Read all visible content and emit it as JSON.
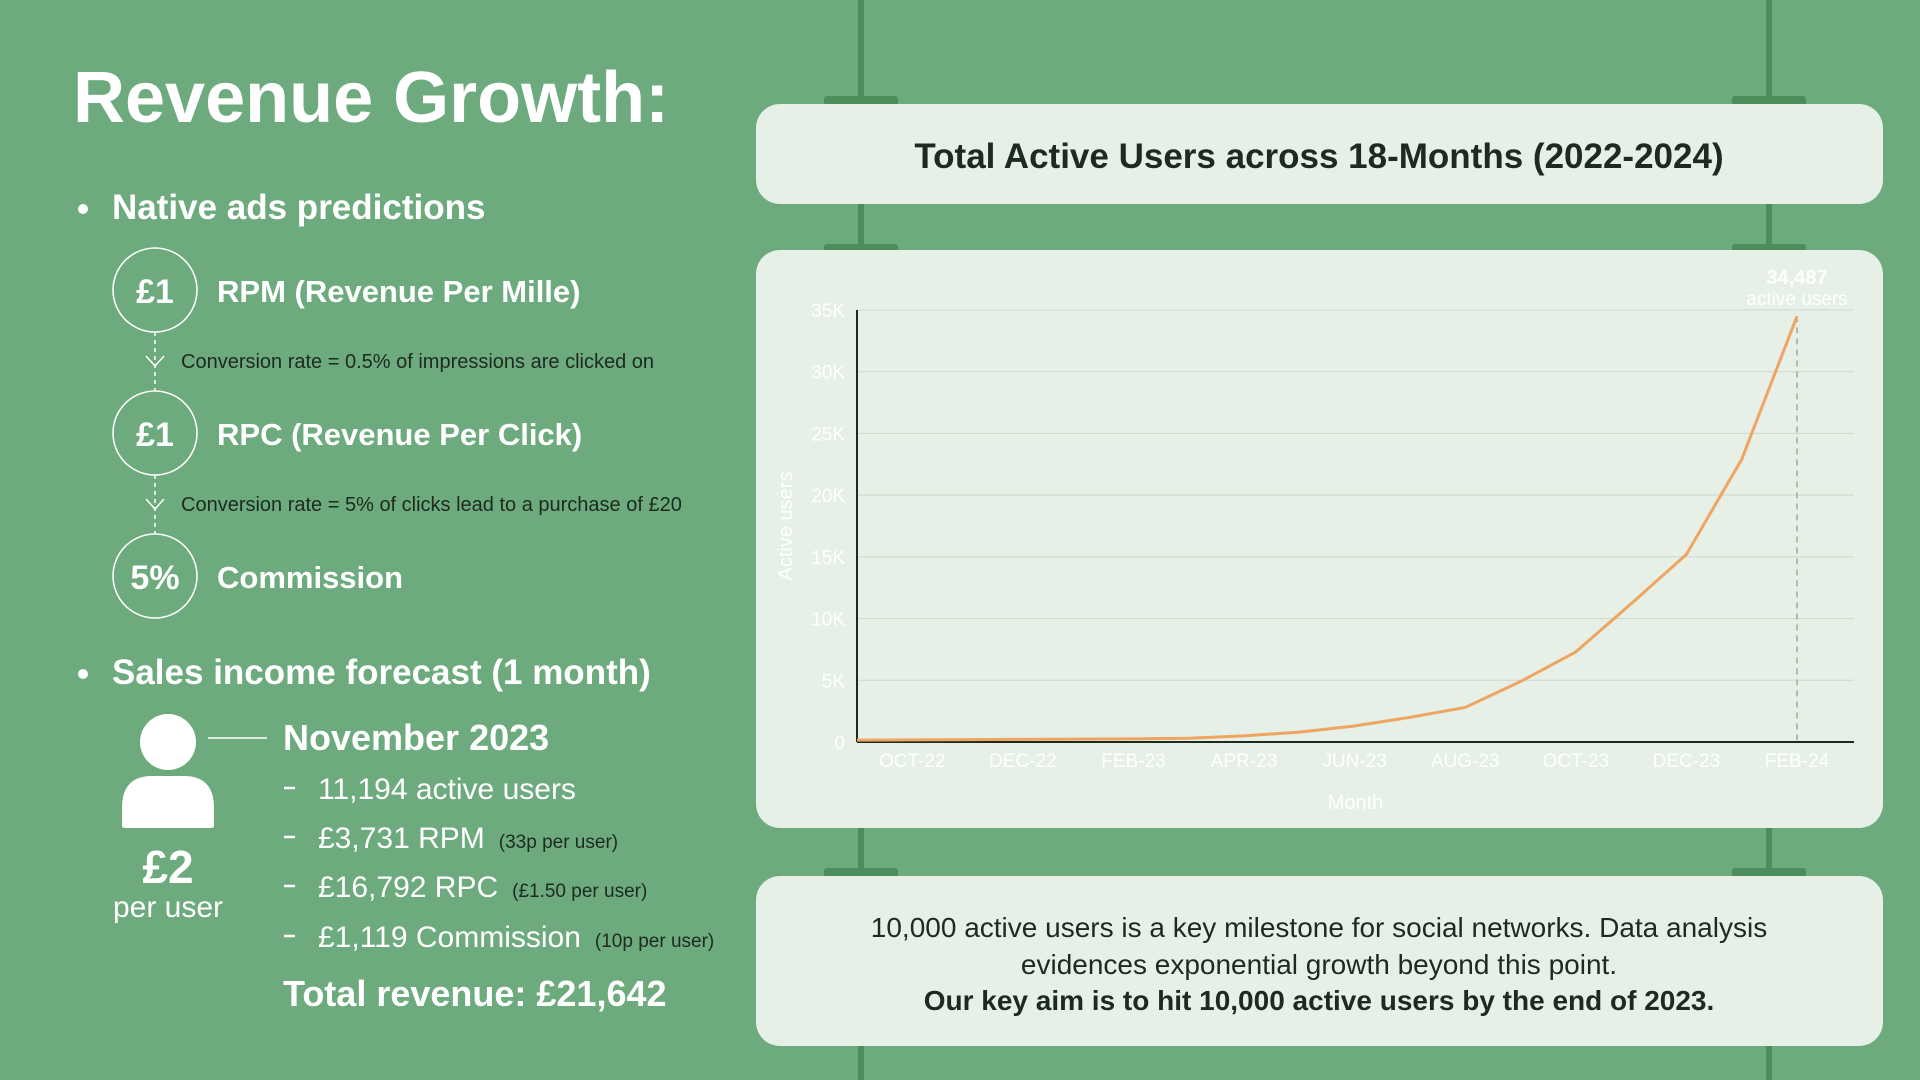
{
  "header": {
    "title": "Revenue Growth:"
  },
  "native_ads": {
    "heading": "Native ads predictions",
    "steps": [
      {
        "badge": "£1",
        "label": "RPM (Revenue Per Mille)"
      },
      {
        "badge": "£1",
        "label": "RPC (Revenue Per Click)"
      },
      {
        "badge": "5%",
        "label": "Commission"
      }
    ],
    "conversions": [
      "Conversion rate = 0.5% of impressions are clicked on",
      "Conversion rate = 5% of clicks lead to a purchase of £20"
    ]
  },
  "sales_forecast": {
    "heading": "Sales income forecast (1 month)",
    "per_user_value": "£2",
    "per_user_label": "per user",
    "month": "November 2023",
    "items": [
      {
        "text": "11,194 active users"
      },
      {
        "text": "£3,731 RPM",
        "note": "(33p per user)"
      },
      {
        "text": "£16,792 RPC",
        "note": "(£1.50 per user)"
      },
      {
        "text": "£1,119 Commission",
        "note": "(10p per user)"
      }
    ],
    "total": "Total revenue: £21,642"
  },
  "chart_data": {
    "type": "line",
    "title": "Total Active Users across 18-Months (2022-2024)",
    "categories": [
      null,
      "OCT-22",
      null,
      "DEC-22",
      null,
      "FEB-23",
      null,
      "APR-23",
      null,
      "JUN-23",
      null,
      "AUG-23",
      null,
      "OCT-23",
      null,
      "DEC-23",
      null,
      "FEB-24"
    ],
    "values": [
      150,
      170,
      190,
      210,
      230,
      250,
      300,
      500,
      800,
      1300,
      2000,
      2800,
      4900,
      7300,
      11200,
      15200,
      22900,
      34487
    ],
    "value_labels": [
      null,
      null,
      null,
      null,
      null,
      null,
      null,
      null,
      null,
      null,
      null,
      null,
      null,
      null,
      null,
      null,
      null,
      "34,487"
    ],
    "annotation": "active users",
    "color": "#f0a462",
    "xlabel": "Month",
    "ylabel": "Active users",
    "ylim": [
      0,
      35000
    ],
    "yticks": [
      0,
      {
        "value": 5000,
        "label": "5K"
      },
      {
        "value": 10000,
        "label": "10K"
      },
      {
        "value": 15000,
        "label": "15K"
      },
      {
        "value": 20000,
        "label": "20K"
      },
      {
        "value": 25000,
        "label": "25K"
      },
      {
        "value": 30000,
        "label": "30K"
      },
      {
        "value": 35000,
        "label": "35K"
      }
    ],
    "grid": true
  },
  "note": {
    "lines": [
      "10,000 active users is a key milestone for social networks. Data analysis",
      "evidences exponential growth beyond this point."
    ],
    "emphasis": "Our key aim is to hit 10,000 active users by the end of 2023."
  }
}
